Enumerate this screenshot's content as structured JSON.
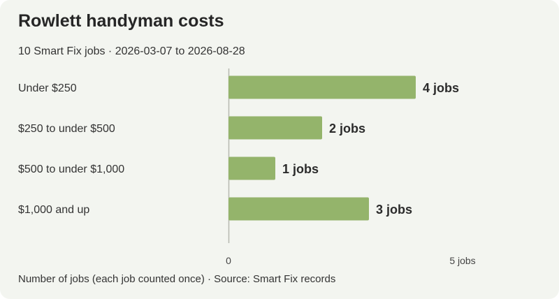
{
  "title": "Rowlett handyman costs",
  "subtitle": "10 Smart Fix jobs · 2026-03-07 to 2026-08-28",
  "footer": "Number of jobs (each job counted once) · Source: Smart Fix records",
  "colors": {
    "bar": "#94b46b",
    "axis": "#b5b8b0",
    "background": "#f3f5f0"
  },
  "chart_data": {
    "type": "bar",
    "orientation": "horizontal",
    "categories": [
      "Under $250",
      "$250 to under $500",
      "$500 to under $1,000",
      "$1,000 and up"
    ],
    "values": [
      4,
      2,
      1,
      3
    ],
    "value_labels": [
      "4 jobs",
      "2 jobs",
      "1 jobs",
      "3 jobs"
    ],
    "xlim": [
      0,
      5
    ],
    "x_ticks": [
      {
        "value": 0,
        "label": "0"
      },
      {
        "value": 5,
        "label": "5 jobs"
      }
    ],
    "grid": false,
    "legend": "none"
  }
}
